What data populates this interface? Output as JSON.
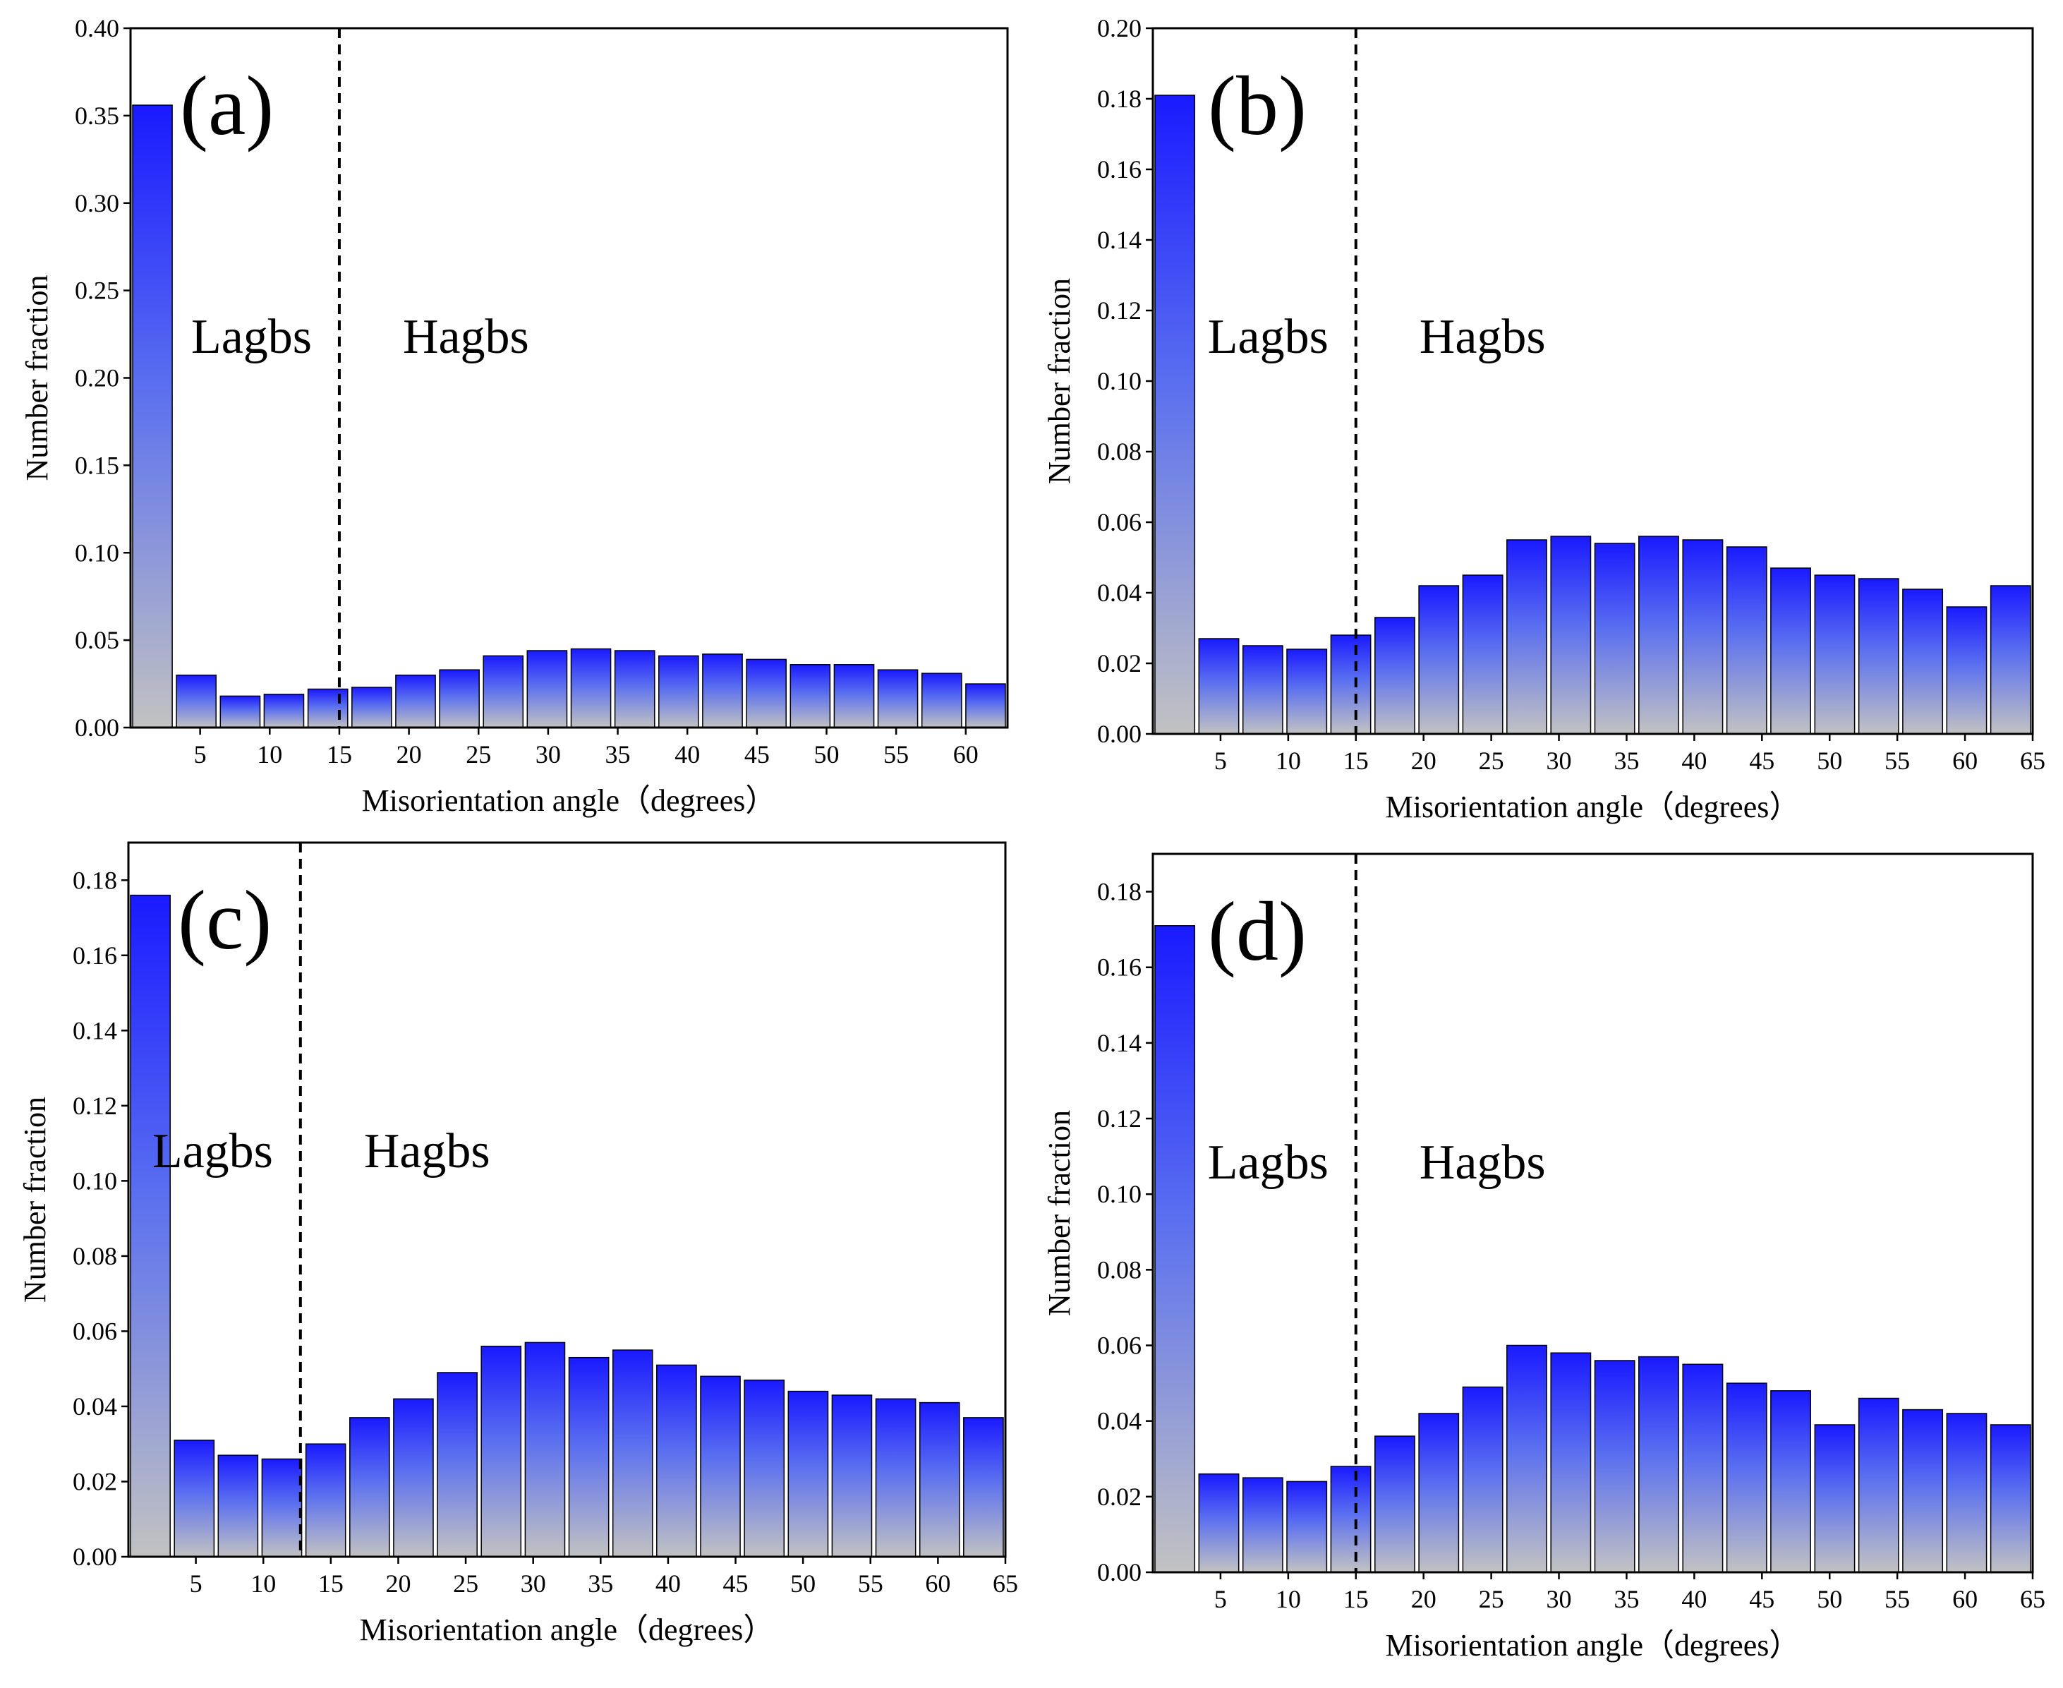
{
  "chart_data": [
    {
      "type": "bar",
      "panel_label": "(a)",
      "xlabel": "Misorientation angle（degrees）",
      "ylabel": "Number fraction",
      "ylim": [
        0,
        0.4
      ],
      "yticks": [
        "0.00",
        "0.05",
        "0.10",
        "0.15",
        "0.20",
        "0.25",
        "0.30",
        "0.35",
        "0.40"
      ],
      "xlim": [
        0,
        63
      ],
      "xticks": [
        "5",
        "10",
        "15",
        "20",
        "25",
        "30",
        "35",
        "40",
        "45",
        "50",
        "55",
        "60"
      ],
      "bin_width": 3.15,
      "divider_x": 15,
      "region_labels": {
        "left": "Lagbs",
        "right": "Hagbs"
      },
      "values": [
        0.356,
        0.03,
        0.018,
        0.019,
        0.022,
        0.023,
        0.03,
        0.033,
        0.041,
        0.044,
        0.045,
        0.044,
        0.041,
        0.042,
        0.039,
        0.036,
        0.036,
        0.033,
        0.031,
        0.025
      ]
    },
    {
      "type": "bar",
      "panel_label": "(b)",
      "xlabel": "Misorientation angle（degrees）",
      "ylabel": "Number fraction",
      "ylim": [
        0,
        0.2
      ],
      "yticks": [
        "0.00",
        "0.02",
        "0.04",
        "0.06",
        "0.08",
        "0.10",
        "0.12",
        "0.14",
        "0.16",
        "0.18",
        "0.20"
      ],
      "xlim": [
        0,
        65
      ],
      "xticks": [
        "5",
        "10",
        "15",
        "20",
        "25",
        "30",
        "35",
        "40",
        "45",
        "50",
        "55",
        "60",
        "65"
      ],
      "bin_width": 3.25,
      "divider_x": 15,
      "region_labels": {
        "left": "Lagbs",
        "right": "Hagbs"
      },
      "values": [
        0.181,
        0.027,
        0.025,
        0.024,
        0.028,
        0.033,
        0.042,
        0.045,
        0.055,
        0.056,
        0.054,
        0.056,
        0.055,
        0.053,
        0.047,
        0.045,
        0.044,
        0.041,
        0.036,
        0.042
      ]
    },
    {
      "type": "bar",
      "panel_label": "(c)",
      "xlabel": "Misorientation angle（degrees）",
      "ylabel": "Number fraction",
      "ylim": [
        0,
        0.19
      ],
      "yticks": [
        "0.00",
        "0.02",
        "0.04",
        "0.06",
        "0.08",
        "0.10",
        "0.12",
        "0.14",
        "0.16",
        "0.18"
      ],
      "xlim": [
        0,
        65
      ],
      "xticks": [
        "5",
        "10",
        "15",
        "20",
        "25",
        "30",
        "35",
        "40",
        "45",
        "50",
        "55",
        "60",
        "65"
      ],
      "bin_width": 3.25,
      "divider_x": 12.75,
      "region_labels": {
        "left": "Lagbs",
        "right": "Hagbs"
      },
      "values": [
        0.176,
        0.031,
        0.027,
        0.026,
        0.03,
        0.037,
        0.042,
        0.049,
        0.056,
        0.057,
        0.053,
        0.055,
        0.051,
        0.048,
        0.047,
        0.044,
        0.043,
        0.042,
        0.041,
        0.037
      ]
    },
    {
      "type": "bar",
      "panel_label": "(d)",
      "xlabel": "Misorientation angle（degrees）",
      "ylabel": "Number fraction",
      "ylim": [
        0,
        0.19
      ],
      "yticks": [
        "0.00",
        "0.02",
        "0.04",
        "0.06",
        "0.08",
        "0.10",
        "0.12",
        "0.14",
        "0.16",
        "0.18"
      ],
      "xlim": [
        0,
        65
      ],
      "xticks": [
        "5",
        "10",
        "15",
        "20",
        "25",
        "30",
        "35",
        "40",
        "45",
        "50",
        "55",
        "60",
        "65"
      ],
      "bin_width": 3.25,
      "divider_x": 15,
      "region_labels": {
        "left": "Lagbs",
        "right": "Hagbs"
      },
      "values": [
        0.171,
        0.026,
        0.025,
        0.024,
        0.028,
        0.036,
        0.042,
        0.049,
        0.06,
        0.058,
        0.056,
        0.057,
        0.055,
        0.05,
        0.048,
        0.039,
        0.046,
        0.043,
        0.042,
        0.039
      ]
    }
  ]
}
